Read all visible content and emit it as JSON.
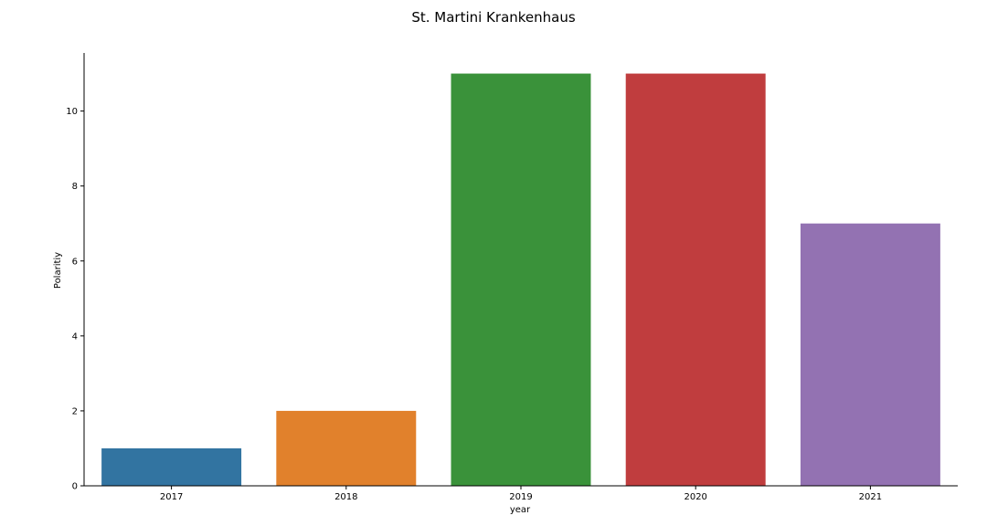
{
  "chart_data": {
    "type": "bar",
    "title": "St. Martini Krankenhaus",
    "xlabel": "year",
    "ylabel": "Polaritiy",
    "categories": [
      "2017",
      "2018",
      "2019",
      "2020",
      "2021"
    ],
    "values": [
      1,
      2,
      11,
      11,
      7
    ],
    "colors": [
      "#3274a1",
      "#e1812c",
      "#3a923a",
      "#c03d3e",
      "#9372b2"
    ],
    "ylim": [
      0,
      11.55
    ],
    "yticks": [
      0,
      2,
      4,
      6,
      8,
      10
    ],
    "grid": false,
    "legend": "none"
  }
}
